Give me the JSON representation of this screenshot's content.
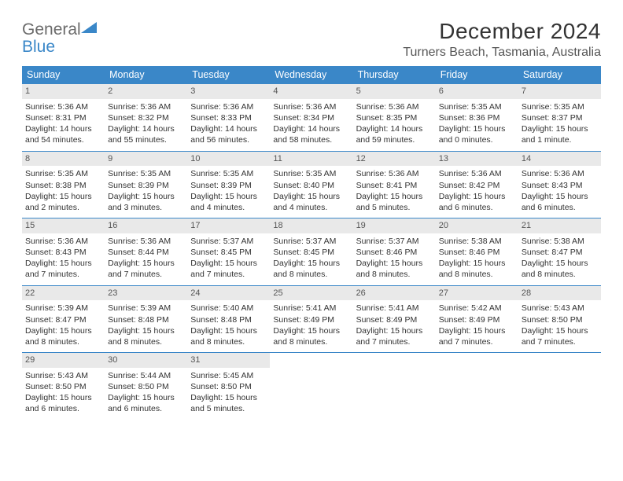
{
  "logo": {
    "general": "General",
    "blue": "Blue"
  },
  "title": "December 2024",
  "location": "Turners Beach, Tasmania, Australia",
  "weekdays": [
    "Sunday",
    "Monday",
    "Tuesday",
    "Wednesday",
    "Thursday",
    "Friday",
    "Saturday"
  ],
  "colors": {
    "header_bg": "#3a87c8",
    "header_text": "#ffffff",
    "daynum_bg": "#e9e9e9",
    "row_border": "#3a87c8",
    "body_text": "#333333",
    "background": "#ffffff"
  },
  "typography": {
    "title_fontsize": 28,
    "location_fontsize": 16,
    "weekday_fontsize": 12.5,
    "cell_fontsize": 10.5
  },
  "weeks": [
    [
      {
        "n": "1",
        "sr": "5:36 AM",
        "ss": "8:31 PM",
        "dl": "14 hours and 54 minutes."
      },
      {
        "n": "2",
        "sr": "5:36 AM",
        "ss": "8:32 PM",
        "dl": "14 hours and 55 minutes."
      },
      {
        "n": "3",
        "sr": "5:36 AM",
        "ss": "8:33 PM",
        "dl": "14 hours and 56 minutes."
      },
      {
        "n": "4",
        "sr": "5:36 AM",
        "ss": "8:34 PM",
        "dl": "14 hours and 58 minutes."
      },
      {
        "n": "5",
        "sr": "5:36 AM",
        "ss": "8:35 PM",
        "dl": "14 hours and 59 minutes."
      },
      {
        "n": "6",
        "sr": "5:35 AM",
        "ss": "8:36 PM",
        "dl": "15 hours and 0 minutes."
      },
      {
        "n": "7",
        "sr": "5:35 AM",
        "ss": "8:37 PM",
        "dl": "15 hours and 1 minute."
      }
    ],
    [
      {
        "n": "8",
        "sr": "5:35 AM",
        "ss": "8:38 PM",
        "dl": "15 hours and 2 minutes."
      },
      {
        "n": "9",
        "sr": "5:35 AM",
        "ss": "8:39 PM",
        "dl": "15 hours and 3 minutes."
      },
      {
        "n": "10",
        "sr": "5:35 AM",
        "ss": "8:39 PM",
        "dl": "15 hours and 4 minutes."
      },
      {
        "n": "11",
        "sr": "5:35 AM",
        "ss": "8:40 PM",
        "dl": "15 hours and 4 minutes."
      },
      {
        "n": "12",
        "sr": "5:36 AM",
        "ss": "8:41 PM",
        "dl": "15 hours and 5 minutes."
      },
      {
        "n": "13",
        "sr": "5:36 AM",
        "ss": "8:42 PM",
        "dl": "15 hours and 6 minutes."
      },
      {
        "n": "14",
        "sr": "5:36 AM",
        "ss": "8:43 PM",
        "dl": "15 hours and 6 minutes."
      }
    ],
    [
      {
        "n": "15",
        "sr": "5:36 AM",
        "ss": "8:43 PM",
        "dl": "15 hours and 7 minutes."
      },
      {
        "n": "16",
        "sr": "5:36 AM",
        "ss": "8:44 PM",
        "dl": "15 hours and 7 minutes."
      },
      {
        "n": "17",
        "sr": "5:37 AM",
        "ss": "8:45 PM",
        "dl": "15 hours and 7 minutes."
      },
      {
        "n": "18",
        "sr": "5:37 AM",
        "ss": "8:45 PM",
        "dl": "15 hours and 8 minutes."
      },
      {
        "n": "19",
        "sr": "5:37 AM",
        "ss": "8:46 PM",
        "dl": "15 hours and 8 minutes."
      },
      {
        "n": "20",
        "sr": "5:38 AM",
        "ss": "8:46 PM",
        "dl": "15 hours and 8 minutes."
      },
      {
        "n": "21",
        "sr": "5:38 AM",
        "ss": "8:47 PM",
        "dl": "15 hours and 8 minutes."
      }
    ],
    [
      {
        "n": "22",
        "sr": "5:39 AM",
        "ss": "8:47 PM",
        "dl": "15 hours and 8 minutes."
      },
      {
        "n": "23",
        "sr": "5:39 AM",
        "ss": "8:48 PM",
        "dl": "15 hours and 8 minutes."
      },
      {
        "n": "24",
        "sr": "5:40 AM",
        "ss": "8:48 PM",
        "dl": "15 hours and 8 minutes."
      },
      {
        "n": "25",
        "sr": "5:41 AM",
        "ss": "8:49 PM",
        "dl": "15 hours and 8 minutes."
      },
      {
        "n": "26",
        "sr": "5:41 AM",
        "ss": "8:49 PM",
        "dl": "15 hours and 7 minutes."
      },
      {
        "n": "27",
        "sr": "5:42 AM",
        "ss": "8:49 PM",
        "dl": "15 hours and 7 minutes."
      },
      {
        "n": "28",
        "sr": "5:43 AM",
        "ss": "8:50 PM",
        "dl": "15 hours and 7 minutes."
      }
    ],
    [
      {
        "n": "29",
        "sr": "5:43 AM",
        "ss": "8:50 PM",
        "dl": "15 hours and 6 minutes."
      },
      {
        "n": "30",
        "sr": "5:44 AM",
        "ss": "8:50 PM",
        "dl": "15 hours and 6 minutes."
      },
      {
        "n": "31",
        "sr": "5:45 AM",
        "ss": "8:50 PM",
        "dl": "15 hours and 5 minutes."
      },
      null,
      null,
      null,
      null
    ]
  ],
  "labels": {
    "sunrise": "Sunrise: ",
    "sunset": "Sunset: ",
    "daylight": "Daylight: "
  }
}
